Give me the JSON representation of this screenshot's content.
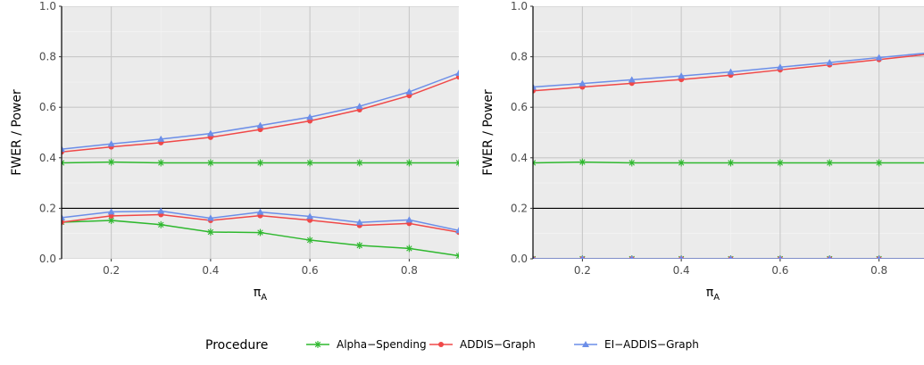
{
  "chart_data": [
    {
      "type": "line",
      "xlabel": "π",
      "xlabel_subscript": "A",
      "ylabel": "FWER / Power",
      "xlim": [
        0.1,
        0.9
      ],
      "ylim": [
        0.0,
        1.0
      ],
      "x_ticks": [
        0.2,
        0.4,
        0.6,
        0.8
      ],
      "x_tick_labels": [
        "0.2",
        "0.4",
        "0.6",
        "0.8"
      ],
      "y_ticks": [
        0.0,
        0.2,
        0.4,
        0.6,
        0.8,
        1.0
      ],
      "y_tick_labels": [
        "0.0",
        "0.2",
        "0.4",
        "0.6",
        "0.8",
        "1.0"
      ],
      "grid": true,
      "reference_line": 0.2,
      "x": [
        0.1,
        0.2,
        0.3,
        0.4,
        0.5,
        0.6,
        0.7,
        0.8,
        0.9
      ],
      "series": [
        {
          "name": "Alpha−Spending",
          "group": "power",
          "color": "#2EB82E",
          "marker": "asterisk",
          "values": [
            0.38,
            0.383,
            0.38,
            0.38,
            0.38,
            0.38,
            0.38,
            0.38,
            0.38
          ]
        },
        {
          "name": "ADDIS−Graph",
          "group": "power",
          "color": "#F04848",
          "marker": "circle",
          "values": [
            0.423,
            0.443,
            0.46,
            0.481,
            0.512,
            0.546,
            0.59,
            0.646,
            0.72
          ]
        },
        {
          "name": "EI−ADDIS−Graph",
          "group": "power",
          "color": "#6C8EE8",
          "marker": "triangle",
          "values": [
            0.434,
            0.455,
            0.474,
            0.496,
            0.528,
            0.561,
            0.604,
            0.661,
            0.735
          ]
        },
        {
          "name": "Alpha−Spending",
          "group": "fwer",
          "color": "#2EB82E",
          "marker": "asterisk",
          "values": [
            0.145,
            0.152,
            0.135,
            0.106,
            0.104,
            0.074,
            0.053,
            0.041,
            0.012
          ]
        },
        {
          "name": "ADDIS−Graph",
          "group": "fwer",
          "color": "#F04848",
          "marker": "circle",
          "values": [
            0.145,
            0.17,
            0.175,
            0.152,
            0.171,
            0.153,
            0.132,
            0.14,
            0.105
          ]
        },
        {
          "name": "EI−ADDIS−Graph",
          "group": "fwer",
          "color": "#6C8EE8",
          "marker": "triangle",
          "values": [
            0.163,
            0.186,
            0.189,
            0.161,
            0.185,
            0.168,
            0.144,
            0.154,
            0.112
          ]
        }
      ]
    },
    {
      "type": "line",
      "xlabel": "π",
      "xlabel_subscript": "A",
      "ylabel": "FWER / Power",
      "xlim": [
        0.1,
        0.9
      ],
      "ylim": [
        0.0,
        1.0
      ],
      "x_ticks": [
        0.2,
        0.4,
        0.6,
        0.8
      ],
      "x_tick_labels": [
        "0.2",
        "0.4",
        "0.6",
        "0.8"
      ],
      "y_ticks": [
        0.0,
        0.2,
        0.4,
        0.6,
        0.8,
        1.0
      ],
      "y_tick_labels": [
        "0.0",
        "0.2",
        "0.4",
        "0.6",
        "0.8",
        "1.0"
      ],
      "grid": true,
      "reference_line": 0.2,
      "x": [
        0.1,
        0.2,
        0.3,
        0.4,
        0.5,
        0.6,
        0.7,
        0.8,
        0.9
      ],
      "series": [
        {
          "name": "Alpha−Spending",
          "group": "power",
          "color": "#2EB82E",
          "marker": "asterisk",
          "values": [
            0.38,
            0.383,
            0.38,
            0.38,
            0.38,
            0.38,
            0.38,
            0.38,
            0.38
          ]
        },
        {
          "name": "ADDIS−Graph",
          "group": "power",
          "color": "#F04848",
          "marker": "circle",
          "values": [
            0.665,
            0.68,
            0.695,
            0.71,
            0.727,
            0.748,
            0.768,
            0.789,
            0.81
          ]
        },
        {
          "name": "EI−ADDIS−Graph",
          "group": "power",
          "color": "#6C8EE8",
          "marker": "triangle",
          "values": [
            0.68,
            0.694,
            0.709,
            0.724,
            0.74,
            0.759,
            0.777,
            0.797,
            0.815
          ]
        },
        {
          "name": "Alpha−Spending",
          "group": "fwer",
          "color": "#2EB82E",
          "marker": "asterisk",
          "values": [
            0.0,
            0.0,
            0.0,
            0.0,
            0.0,
            0.0,
            0.0,
            0.0,
            0.0
          ]
        },
        {
          "name": "ADDIS−Graph",
          "group": "fwer",
          "color": "#F04848",
          "marker": "circle",
          "values": [
            0.0,
            0.0,
            0.0,
            0.0,
            0.0,
            0.0,
            0.0,
            0.0,
            0.0
          ]
        },
        {
          "name": "EI−ADDIS−Graph",
          "group": "fwer",
          "color": "#6C8EE8",
          "marker": "triangle",
          "values": [
            0.0,
            0.0,
            0.0,
            0.0,
            0.0,
            0.0,
            0.0,
            0.0,
            0.0
          ]
        }
      ]
    }
  ],
  "legend": {
    "title": "Procedure",
    "placement": "bottom",
    "items": [
      {
        "label": "Alpha−Spending",
        "color": "#2EB82E",
        "marker": "asterisk"
      },
      {
        "label": "ADDIS−Graph",
        "color": "#F04848",
        "marker": "circle"
      },
      {
        "label": "EI−ADDIS−Graph",
        "color": "#6C8EE8",
        "marker": "triangle"
      }
    ]
  }
}
